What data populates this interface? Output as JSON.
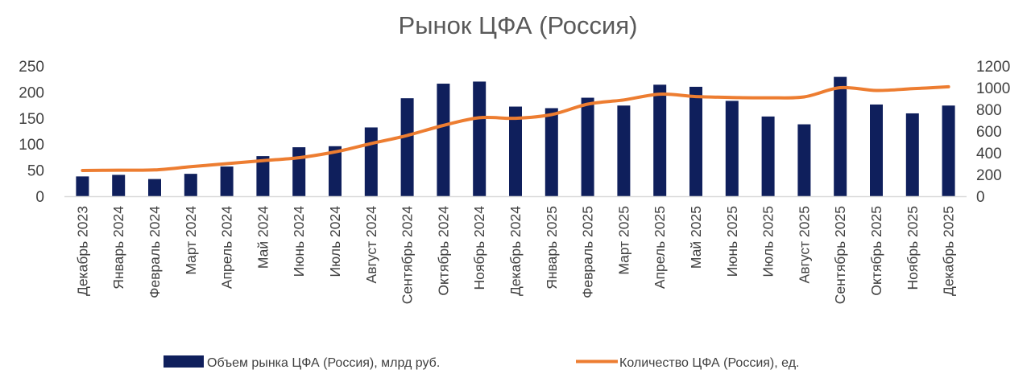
{
  "chart_data": {
    "type": "bar+line",
    "title": "Рынок ЦФА (Россия)",
    "categories": [
      "Декабрь 2023",
      "Январь 2024",
      "Февраль 2024",
      "Март 2024",
      "Апрель 2024",
      "Май 2024",
      "Июнь 2024",
      "Июль 2024",
      "Август 2024",
      "Сентябрь 2024",
      "Октябрь 2024",
      "Ноябрь 2024",
      "Декабрь 2024",
      "Январь 2025",
      "Февраль 2025",
      "Март 2025",
      "Апрель 2025",
      "Май 2025",
      "Июнь 2025",
      "Июль 2025",
      "Август 2025",
      "Сентябрь 2025",
      "Октябрь 2025",
      "Ноябрь 2025",
      "Декабрь 2025"
    ],
    "series": [
      {
        "name": "Объем рынка ЦФА (Россия), млрд руб.",
        "type": "bar",
        "axis": "left",
        "color": "#0f1f5c",
        "values": [
          38,
          41,
          33,
          43,
          57,
          77,
          94,
          96,
          132,
          188,
          216,
          220,
          172,
          169,
          189,
          174,
          214,
          210,
          183,
          153,
          138,
          229,
          176,
          159,
          174
        ]
      },
      {
        "name": "Количество ЦФА (Россия), ед.",
        "type": "line",
        "axis": "right",
        "color": "#ed7d31",
        "values": [
          237,
          240,
          242,
          272,
          300,
          328,
          355,
          408,
          485,
          560,
          652,
          723,
          718,
          752,
          848,
          887,
          940,
          918,
          910,
          907,
          915,
          1000,
          974,
          990,
          1008
        ]
      }
    ],
    "y_left": {
      "min": 0,
      "max": 250,
      "ticks": [
        0,
        50,
        100,
        150,
        200,
        250
      ]
    },
    "y_right": {
      "min": 0,
      "max": 1200,
      "ticks": [
        0,
        200,
        400,
        600,
        800,
        1000,
        1200
      ]
    },
    "legend_position": "bottom",
    "grid": false
  }
}
